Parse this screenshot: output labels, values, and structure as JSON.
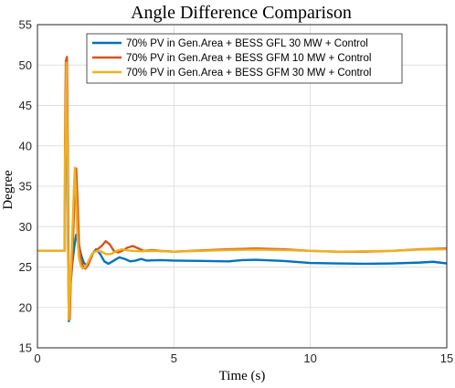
{
  "chart_data": {
    "type": "line",
    "title": "Angle Difference Comparison",
    "xlabel": "Time (s)",
    "ylabel": "Degree",
    "xlim": [
      0,
      15
    ],
    "ylim": [
      15,
      55
    ],
    "xticks": [
      0,
      5,
      10,
      15
    ],
    "yticks": [
      15,
      20,
      25,
      30,
      35,
      40,
      45,
      50,
      55
    ],
    "grid": true,
    "legend_position": "top-right",
    "series": [
      {
        "name": "70% PV in Gen.Area + BESS GFL 30 MW + Control",
        "color": "#0072BD",
        "x": [
          0,
          1.0,
          1.01,
          1.04,
          1.07,
          1.09,
          1.12,
          1.15,
          1.2,
          1.28,
          1.35,
          1.42,
          1.5,
          1.6,
          1.7,
          1.8,
          1.9,
          2.0,
          2.15,
          2.3,
          2.45,
          2.6,
          2.8,
          3.0,
          3.2,
          3.4,
          3.6,
          3.8,
          4.0,
          4.5,
          5.0,
          6.0,
          7.0,
          7.5,
          8.0,
          9.0,
          10.0,
          11.0,
          12.0,
          13.0,
          14.0,
          14.5,
          15.0
        ],
        "y": [
          27.0,
          27.0,
          35.0,
          45.0,
          46.5,
          40.0,
          28.0,
          18.3,
          22.5,
          25.5,
          27.5,
          29.0,
          28.0,
          26.5,
          25.5,
          25.2,
          25.8,
          26.6,
          27.2,
          26.6,
          25.7,
          25.4,
          25.8,
          26.2,
          26.0,
          25.7,
          25.8,
          26.0,
          25.8,
          25.85,
          25.8,
          25.75,
          25.7,
          25.85,
          25.9,
          25.75,
          25.5,
          25.45,
          25.4,
          25.45,
          25.55,
          25.65,
          25.45
        ]
      },
      {
        "name": "70% PV in Gen.Area + BESS GFM 10 MW + Control",
        "color": "#D95319",
        "x": [
          0,
          1.0,
          1.01,
          1.04,
          1.08,
          1.11,
          1.14,
          1.18,
          1.22,
          1.28,
          1.32,
          1.37,
          1.42,
          1.47,
          1.52,
          1.58,
          1.65,
          1.75,
          1.85,
          1.95,
          2.05,
          2.2,
          2.35,
          2.5,
          2.65,
          2.8,
          2.95,
          3.1,
          3.3,
          3.5,
          3.7,
          3.9,
          4.2,
          4.5,
          5.0,
          6.0,
          7.0,
          8.0,
          9.0,
          10.0,
          11.0,
          12.0,
          13.0,
          14.0,
          15.0
        ],
        "y": [
          27.0,
          27.0,
          40.0,
          50.5,
          51.0,
          40.0,
          24.0,
          18.5,
          23.0,
          26.0,
          30.0,
          35.0,
          37.2,
          33.0,
          28.0,
          26.2,
          25.2,
          24.8,
          25.2,
          26.0,
          26.8,
          27.2,
          27.6,
          28.2,
          27.8,
          27.0,
          26.8,
          27.0,
          27.4,
          27.6,
          27.3,
          27.0,
          27.1,
          27.0,
          26.9,
          27.05,
          27.2,
          27.3,
          27.2,
          27.0,
          26.9,
          26.9,
          27.0,
          27.2,
          27.3
        ]
      },
      {
        "name": "70% PV in Gen.Area + BESS GFM 30 MW + Control",
        "color": "#EDB120",
        "x": [
          0,
          1.0,
          1.01,
          1.03,
          1.06,
          1.09,
          1.12,
          1.15,
          1.19,
          1.23,
          1.28,
          1.33,
          1.37,
          1.42,
          1.47,
          1.52,
          1.58,
          1.65,
          1.75,
          1.85,
          1.95,
          2.05,
          2.2,
          2.35,
          2.5,
          2.7,
          2.9,
          3.1,
          3.3,
          3.5,
          3.8,
          4.2,
          5.0,
          6.0,
          7.0,
          8.0,
          9.0,
          10.0,
          11.0,
          12.0,
          13.0,
          14.0,
          15.0
        ],
        "y": [
          27.0,
          27.0,
          38.0,
          42.5,
          50.3,
          42.0,
          27.0,
          18.5,
          21.5,
          25.0,
          29.0,
          34.0,
          37.3,
          33.5,
          28.5,
          26.2,
          25.3,
          24.8,
          25.0,
          25.6,
          26.3,
          26.8,
          27.0,
          26.9,
          26.6,
          26.6,
          27.0,
          27.2,
          27.05,
          27.0,
          26.95,
          27.0,
          26.9,
          27.0,
          27.1,
          27.15,
          27.1,
          27.0,
          26.9,
          26.95,
          27.0,
          27.15,
          27.2
        ]
      }
    ]
  }
}
